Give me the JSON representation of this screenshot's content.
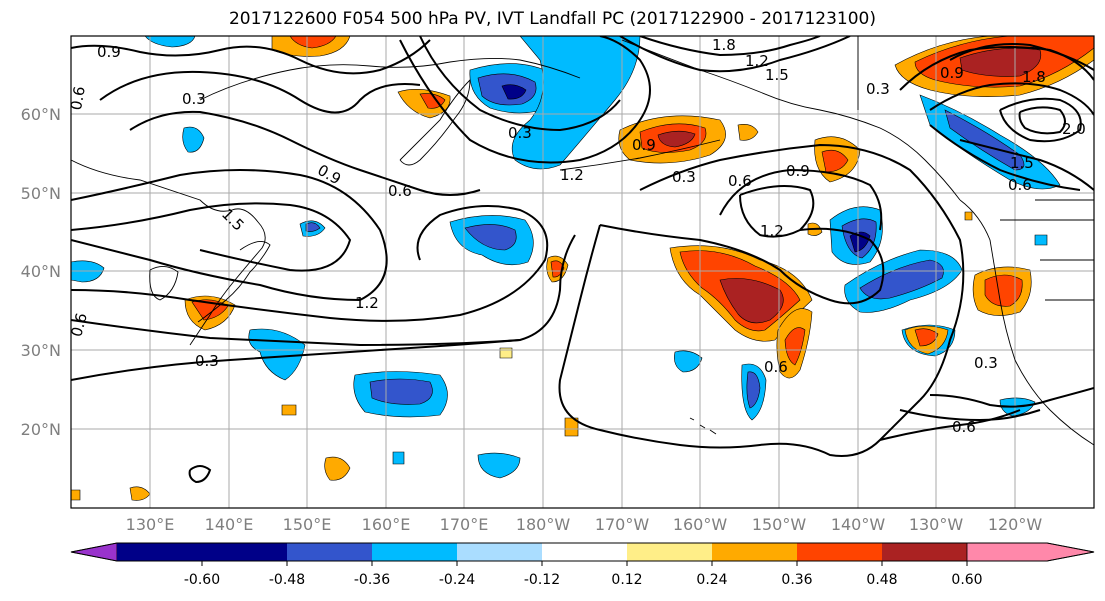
{
  "title": "2017122600 F054 500 hPa PV, IVT Landfall PC (2017122900 - 2017123100)",
  "lon_ticks": [
    "130°E",
    "140°E",
    "150°E",
    "160°E",
    "170°E",
    "180°W",
    "170°W",
    "160°W",
    "150°W",
    "140°W",
    "130°W",
    "120°W"
  ],
  "lat_ticks": [
    "60°N",
    "50°N",
    "40°N",
    "30°N",
    "20°N"
  ],
  "contour_labels": [
    "0.9",
    "0.3",
    "0.6",
    "0.9",
    "1.5",
    "1.2",
    "0.3",
    "0.6",
    "1.2",
    "0.3",
    "0.9",
    "1.2",
    "0.3",
    "0.6",
    "0.9",
    "1.5",
    "1.8",
    "0.3",
    "0.9",
    "1.8",
    "2.0",
    "1.5",
    "0.6",
    "1.2",
    "0.6",
    "0.3",
    "0.6",
    "0.6"
  ],
  "colorbar": {
    "ticks": [
      "-0.60",
      "-0.48",
      "-0.36",
      "-0.24",
      "-0.12",
      "0.12",
      "0.24",
      "0.36",
      "0.48",
      "0.60"
    ],
    "colors": [
      "#9933cc",
      "#000088",
      "#3355cc",
      "#00bbff",
      "#aaddff",
      "#ffffff",
      "#ffee88",
      "#ffaa00",
      "#ff4400",
      "#aa2222",
      "#ff88aa"
    ]
  },
  "shading_colors": {
    "c_neg60": "#000088",
    "c_neg48": "#3355cc",
    "c_neg36": "#00bbff",
    "c_neg24": "#aaddff",
    "c_pos24": "#ffee88",
    "c_pos36": "#ffaa00",
    "c_pos48": "#ff4400",
    "c_pos60": "#aa2222"
  }
}
